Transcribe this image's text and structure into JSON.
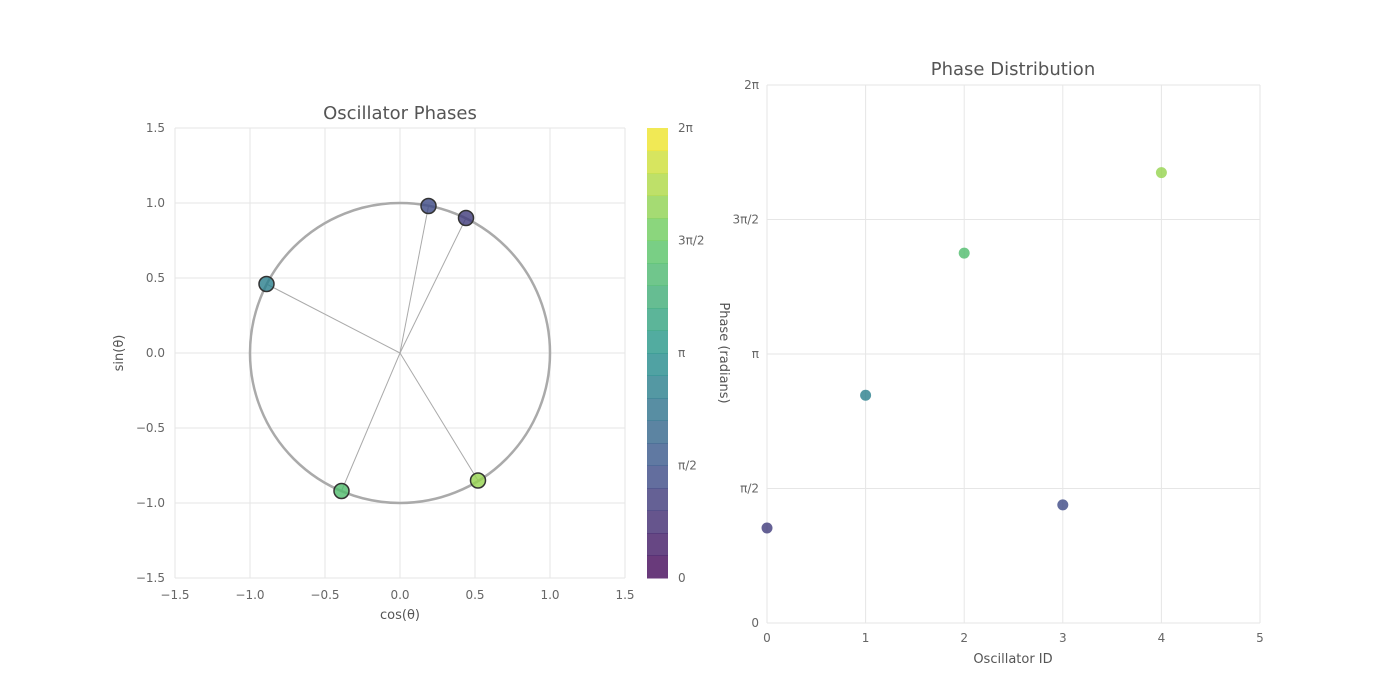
{
  "chart_data": [
    {
      "type": "scatter",
      "title": "Oscillator Phases",
      "xlabel": "cos(θ)",
      "ylabel": "sin(θ)",
      "xlim": [
        -1.5,
        1.5
      ],
      "ylim": [
        -1.5,
        1.5
      ],
      "xticks": [
        -1.5,
        -1.0,
        -0.5,
        0.0,
        0.5,
        1.0,
        1.5
      ],
      "yticks": [
        -1.5,
        -1.0,
        -0.5,
        0.0,
        0.5,
        1.0,
        1.5
      ],
      "xtick_labels": [
        "−1.5",
        "−1.0",
        "−0.5",
        "0.0",
        "0.5",
        "1.0",
        "1.5"
      ],
      "ytick_labels": [
        "−1.5",
        "−1.0",
        "−0.5",
        "0.0",
        "0.5",
        "1.0",
        "1.5"
      ],
      "grid": true,
      "unit_circle": true,
      "points": [
        {
          "x": 0.19,
          "y": 0.98,
          "phase": 1.38
        },
        {
          "x": -0.89,
          "y": 0.46,
          "phase": 2.66
        },
        {
          "x": -0.39,
          "y": -0.92,
          "phase": 4.32
        },
        {
          "x": 0.44,
          "y": 0.9,
          "phase": 1.11
        },
        {
          "x": 0.52,
          "y": -0.85,
          "phase": 5.26
        }
      ],
      "colorbar": {
        "range": [
          0,
          6.2832
        ],
        "ticks": [
          0,
          1.5708,
          3.1416,
          4.7124,
          6.2832
        ],
        "tick_labels": [
          "0",
          "π/2",
          "π",
          "3π/2",
          "2π"
        ],
        "levels": 20,
        "colormap": "viridis"
      }
    },
    {
      "type": "scatter",
      "title": "Phase Distribution",
      "xlabel": "Oscillator ID",
      "ylabel": "Phase (radians)",
      "xlim": [
        0,
        5
      ],
      "ylim": [
        0,
        6.2832
      ],
      "xticks": [
        0,
        1,
        2,
        3,
        4,
        5
      ],
      "xtick_labels": [
        "0",
        "1",
        "2",
        "3",
        "4",
        "5"
      ],
      "yticks": [
        0,
        1.5708,
        3.1416,
        4.7124,
        6.2832
      ],
      "ytick_labels": [
        "0",
        "π/2",
        "π",
        "3π/2",
        "2π"
      ],
      "grid": true,
      "points": [
        {
          "x": 0,
          "y": 1.11
        },
        {
          "x": 1,
          "y": 2.66
        },
        {
          "x": 2,
          "y": 4.32
        },
        {
          "x": 3,
          "y": 1.38
        },
        {
          "x": 4,
          "y": 5.26
        }
      ]
    }
  ]
}
